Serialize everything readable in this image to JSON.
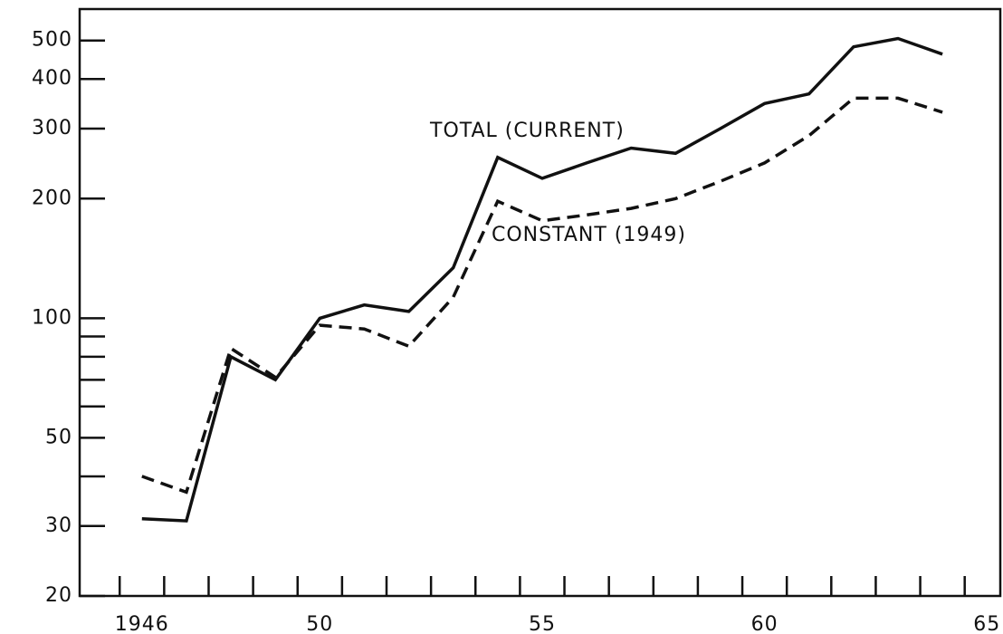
{
  "chart_data": {
    "type": "line",
    "log_y": true,
    "x": [
      1946,
      1947,
      1948,
      1949,
      1950,
      1951,
      1952,
      1953,
      1954,
      1955,
      1956,
      1957,
      1958,
      1959,
      1960,
      1961,
      1962,
      1963,
      1964
    ],
    "series": [
      {
        "name": "TOTAL (CURRENT)",
        "color": "#111111",
        "style": "solid",
        "values": [
          31.3,
          30.9,
          80,
          70,
          100,
          108,
          104,
          134,
          254,
          225,
          246,
          268,
          260,
          300,
          347,
          367,
          482,
          506,
          462
        ]
      },
      {
        "name": "CONSTANT (1949)",
        "color": "#111111",
        "style": "dashed",
        "values": [
          40,
          36.5,
          84,
          71,
          96,
          94,
          85,
          113,
          197,
          176,
          182,
          189,
          200,
          221,
          246,
          288,
          358,
          358,
          330
        ]
      }
    ],
    "xlim": [
      1944.6,
      1965.3
    ],
    "ylim": [
      20,
      600
    ],
    "xticks": [
      1946,
      {
        "value": 1950,
        "label": "50"
      },
      {
        "value": 1955,
        "label": "55"
      },
      {
        "value": 1960,
        "label": "60"
      },
      {
        "value": 1965,
        "label": "65"
      }
    ],
    "xminor_ticks": [
      1945.5,
      1946.5,
      1947.5,
      1948.5,
      1949.5,
      1950.5,
      1951.5,
      1952.5,
      1953.5,
      1954.5,
      1955.5,
      1956.5,
      1957.5,
      1958.5,
      1959.5,
      1960.5,
      1961.5,
      1962.5,
      1963.5,
      1964.5
    ],
    "yticks": [
      20,
      30,
      50,
      100,
      200,
      300,
      400,
      500
    ],
    "yminor_ticks": [
      40,
      60,
      70,
      80,
      90
    ],
    "grid": false
  }
}
